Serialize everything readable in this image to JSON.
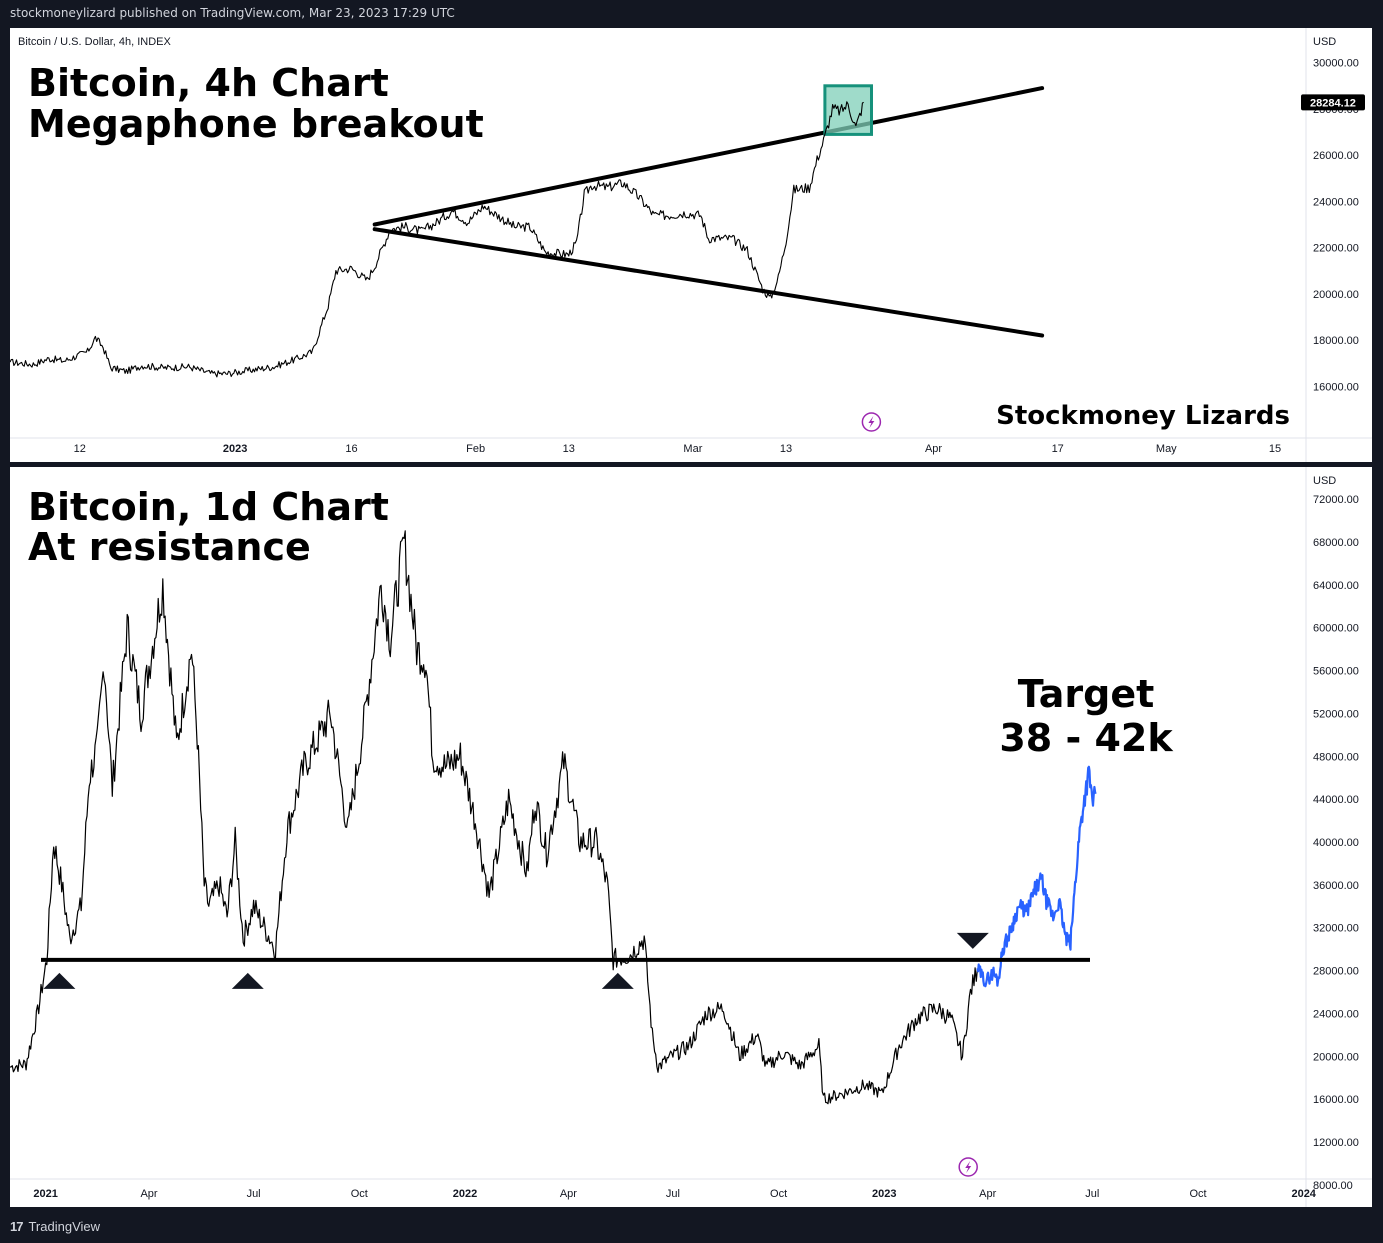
{
  "header": {
    "published_by": "stockmoneylizard published on TradingView.com, Mar 23, 2023 17:29 UTC"
  },
  "footer": {
    "brand": "TradingView",
    "logo_icon": "tradingview-logo-icon"
  },
  "colors": {
    "background": "#131722",
    "panel": "#ffffff",
    "price": "#000000",
    "projection": "#2962ff",
    "box_fill": "#7fcfb8",
    "box_stroke": "#16917b",
    "event_icon": "#9c27b0"
  },
  "chart_data": [
    {
      "type": "line",
      "symbol": "Bitcoin / U.S. Dollar, 4h, INDEX",
      "title_lines": [
        "Bitcoin, 4h Chart",
        "Megaphone breakout"
      ],
      "watermark": "Stockmoney Lizards",
      "currency": "USD",
      "last_price_label": "28284.12",
      "ylim": [
        14200,
        31500
      ],
      "y_ticks": [
        {
          "v": 30000,
          "label": "30000.00"
        },
        {
          "v": 28000,
          "label": "28000.00"
        },
        {
          "v": 26000,
          "label": "26000.00"
        },
        {
          "v": 24000,
          "label": "24000.00"
        },
        {
          "v": 22000,
          "label": "22000.00"
        },
        {
          "v": 20000,
          "label": "20000.00"
        },
        {
          "v": 18000,
          "label": "18000.00"
        },
        {
          "v": 16000,
          "label": "16000.00"
        }
      ],
      "x_range": [
        "2022-12-03",
        "2023-05-19"
      ],
      "x_ticks": [
        {
          "d": "2022-12-12",
          "label": "12",
          "bold": false
        },
        {
          "d": "2023-01-01",
          "label": "2023",
          "bold": true
        },
        {
          "d": "2023-01-16",
          "label": "16",
          "bold": false
        },
        {
          "d": "2023-02-01",
          "label": "Feb",
          "bold": false
        },
        {
          "d": "2023-02-13",
          "label": "13",
          "bold": false
        },
        {
          "d": "2023-03-01",
          "label": "Mar",
          "bold": false
        },
        {
          "d": "2023-03-13",
          "label": "13",
          "bold": false
        },
        {
          "d": "2023-04-01",
          "label": "Apr",
          "bold": false
        },
        {
          "d": "2023-04-17",
          "label": "17",
          "bold": false
        },
        {
          "d": "2023-05-01",
          "label": "May",
          "bold": false
        },
        {
          "d": "2023-05-15",
          "label": "15",
          "bold": false
        }
      ],
      "price": [
        [
          "2022-12-03",
          17050
        ],
        [
          "2022-12-06",
          16950
        ],
        [
          "2022-12-08",
          17200
        ],
        [
          "2022-12-10",
          17100
        ],
        [
          "2022-12-13",
          17500
        ],
        [
          "2022-12-14",
          18100
        ],
        [
          "2022-12-15",
          17700
        ],
        [
          "2022-12-16",
          16800
        ],
        [
          "2022-12-18",
          16650
        ],
        [
          "2022-12-20",
          16900
        ],
        [
          "2022-12-23",
          16800
        ],
        [
          "2022-12-26",
          16850
        ],
        [
          "2022-12-29",
          16550
        ],
        [
          "2022-12-31",
          16550
        ],
        [
          "2023-01-03",
          16700
        ],
        [
          "2023-01-06",
          16850
        ],
        [
          "2023-01-09",
          17200
        ],
        [
          "2023-01-11",
          17500
        ],
        [
          "2023-01-12",
          18500
        ],
        [
          "2023-01-13",
          19500
        ],
        [
          "2023-01-14",
          21000
        ],
        [
          "2023-01-16",
          21100
        ],
        [
          "2023-01-18",
          20600
        ],
        [
          "2023-01-19",
          21200
        ],
        [
          "2023-01-21",
          22800
        ],
        [
          "2023-01-23",
          22900
        ],
        [
          "2023-01-25",
          22700
        ],
        [
          "2023-01-27",
          23100
        ],
        [
          "2023-01-29",
          23600
        ],
        [
          "2023-01-31",
          23100
        ],
        [
          "2023-02-02",
          23800
        ],
        [
          "2023-02-04",
          23350
        ],
        [
          "2023-02-06",
          22900
        ],
        [
          "2023-02-08",
          22900
        ],
        [
          "2023-02-10",
          21800
        ],
        [
          "2023-02-13",
          21700
        ],
        [
          "2023-02-14",
          22200
        ],
        [
          "2023-02-15",
          24300
        ],
        [
          "2023-02-16",
          24700
        ],
        [
          "2023-02-18",
          24600
        ],
        [
          "2023-02-20",
          24800
        ],
        [
          "2023-02-22",
          24200
        ],
        [
          "2023-02-24",
          23400
        ],
        [
          "2023-02-26",
          23400
        ],
        [
          "2023-02-28",
          23500
        ],
        [
          "2023-03-02",
          23400
        ],
        [
          "2023-03-03",
          22400
        ],
        [
          "2023-03-06",
          22400
        ],
        [
          "2023-03-08",
          21900
        ],
        [
          "2023-03-10",
          20200
        ],
        [
          "2023-03-11",
          19800
        ],
        [
          "2023-03-12",
          20700
        ],
        [
          "2023-03-13",
          22300
        ],
        [
          "2023-03-14",
          24500
        ],
        [
          "2023-03-16",
          24600
        ],
        [
          "2023-03-17",
          25800
        ],
        [
          "2023-03-18",
          26800
        ],
        [
          "2023-03-19",
          28000
        ],
        [
          "2023-03-20",
          27900
        ],
        [
          "2023-03-21",
          28200
        ],
        [
          "2023-03-22",
          27200
        ],
        [
          "2023-03-23",
          28284
        ]
      ],
      "trendlines": [
        {
          "name": "upper-trendline",
          "points": [
            [
              "2023-01-19",
              23000
            ],
            [
              "2023-04-15",
              28900
            ]
          ]
        },
        {
          "name": "lower-trendline",
          "points": [
            [
              "2023-01-19",
              22800
            ],
            [
              "2023-04-15",
              18200
            ]
          ]
        }
      ],
      "box": {
        "x": [
          "2023-03-18",
          "2023-03-24"
        ],
        "y": [
          26900,
          29000
        ]
      },
      "event_marker": {
        "d": "2023-03-24",
        "icon": "lightning-icon"
      }
    },
    {
      "type": "line",
      "title_lines": [
        "Bitcoin, 1d Chart",
        "At resistance"
      ],
      "annotation_lines": [
        "Target",
        "38 - 42k"
      ],
      "currency": "USD",
      "ylim": [
        7800,
        75000
      ],
      "y_ticks": [
        {
          "v": 72000,
          "label": "72000.00"
        },
        {
          "v": 68000,
          "label": "68000.00"
        },
        {
          "v": 64000,
          "label": "64000.00"
        },
        {
          "v": 60000,
          "label": "60000.00"
        },
        {
          "v": 56000,
          "label": "56000.00"
        },
        {
          "v": 52000,
          "label": "52000.00"
        },
        {
          "v": 48000,
          "label": "48000.00"
        },
        {
          "v": 44000,
          "label": "44000.00"
        },
        {
          "v": 40000,
          "label": "40000.00"
        },
        {
          "v": 36000,
          "label": "36000.00"
        },
        {
          "v": 32000,
          "label": "32000.00"
        },
        {
          "v": 28000,
          "label": "28000.00"
        },
        {
          "v": 24000,
          "label": "24000.00"
        },
        {
          "v": 20000,
          "label": "20000.00"
        },
        {
          "v": 16000,
          "label": "16000.00"
        },
        {
          "v": 12000,
          "label": "12000.00"
        },
        {
          "v": 8000,
          "label": "8000.00"
        }
      ],
      "x_range": [
        "2020-12-01",
        "2024-01-03"
      ],
      "x_ticks": [
        {
          "d": "2021-01-01",
          "label": "2021",
          "bold": true
        },
        {
          "d": "2021-04-01",
          "label": "Apr",
          "bold": false
        },
        {
          "d": "2021-07-01",
          "label": "Jul",
          "bold": false
        },
        {
          "d": "2021-10-01",
          "label": "Oct",
          "bold": false
        },
        {
          "d": "2022-01-01",
          "label": "2022",
          "bold": true
        },
        {
          "d": "2022-04-01",
          "label": "Apr",
          "bold": false
        },
        {
          "d": "2022-07-01",
          "label": "Jul",
          "bold": false
        },
        {
          "d": "2022-10-01",
          "label": "Oct",
          "bold": false
        },
        {
          "d": "2023-01-01",
          "label": "2023",
          "bold": true
        },
        {
          "d": "2023-04-01",
          "label": "Apr",
          "bold": false
        },
        {
          "d": "2023-07-01",
          "label": "Jul",
          "bold": false
        },
        {
          "d": "2023-10-01",
          "label": "Oct",
          "bold": false
        },
        {
          "d": "2024-01-01",
          "label": "2024",
          "bold": true
        }
      ],
      "price": [
        [
          "2020-12-01",
          19000
        ],
        [
          "2020-12-15",
          19300
        ],
        [
          "2020-12-25",
          24000
        ],
        [
          "2021-01-02",
          29000
        ],
        [
          "2021-01-08",
          40000
        ],
        [
          "2021-01-15",
          36000
        ],
        [
          "2021-01-22",
          31000
        ],
        [
          "2021-02-01",
          34000
        ],
        [
          "2021-02-08",
          46000
        ],
        [
          "2021-02-15",
          49000
        ],
        [
          "2021-02-21",
          57000
        ],
        [
          "2021-02-28",
          45000
        ],
        [
          "2021-03-13",
          60000
        ],
        [
          "2021-03-25",
          52000
        ],
        [
          "2021-04-13",
          64000
        ],
        [
          "2021-04-25",
          49000
        ],
        [
          "2021-05-08",
          58000
        ],
        [
          "2021-05-13",
          50000
        ],
        [
          "2021-05-19",
          36000
        ],
        [
          "2021-05-23",
          34000
        ],
        [
          "2021-06-01",
          36000
        ],
        [
          "2021-06-08",
          33000
        ],
        [
          "2021-06-15",
          40000
        ],
        [
          "2021-06-22",
          31000
        ],
        [
          "2021-07-01",
          34000
        ],
        [
          "2021-07-20",
          30000
        ],
        [
          "2021-07-30",
          41000
        ],
        [
          "2021-08-14",
          47000
        ],
        [
          "2021-09-06",
          52000
        ],
        [
          "2021-09-21",
          41000
        ],
        [
          "2021-10-05",
          51000
        ],
        [
          "2021-10-20",
          64000
        ],
        [
          "2021-10-28",
          59000
        ],
        [
          "2021-11-09",
          68000
        ],
        [
          "2021-11-20",
          58000
        ],
        [
          "2021-11-28",
          57000
        ],
        [
          "2021-12-04",
          48000
        ],
        [
          "2021-12-15",
          47000
        ],
        [
          "2021-12-28",
          48000
        ],
        [
          "2022-01-10",
          42000
        ],
        [
          "2022-01-22",
          35000
        ],
        [
          "2022-02-08",
          44000
        ],
        [
          "2022-02-24",
          37000
        ],
        [
          "2022-03-03",
          44000
        ],
        [
          "2022-03-13",
          39000
        ],
        [
          "2022-03-28",
          47500
        ],
        [
          "2022-04-11",
          40000
        ],
        [
          "2022-04-25",
          40000
        ],
        [
          "2022-05-05",
          36000
        ],
        [
          "2022-05-10",
          29000
        ],
        [
          "2022-05-25",
          29500
        ],
        [
          "2022-06-06",
          31000
        ],
        [
          "2022-06-13",
          22000
        ],
        [
          "2022-06-18",
          19000
        ],
        [
          "2022-06-30",
          20000
        ],
        [
          "2022-07-15",
          21000
        ],
        [
          "2022-07-30",
          24000
        ],
        [
          "2022-08-14",
          24500
        ],
        [
          "2022-08-28",
          20000
        ],
        [
          "2022-09-12",
          22000
        ],
        [
          "2022-09-20",
          19000
        ],
        [
          "2022-10-05",
          20300
        ],
        [
          "2022-10-20",
          19100
        ],
        [
          "2022-11-05",
          21000
        ],
        [
          "2022-11-09",
          16000
        ],
        [
          "2022-11-25",
          16500
        ],
        [
          "2022-12-15",
          17300
        ],
        [
          "2022-12-30",
          16500
        ],
        [
          "2023-01-14",
          21000
        ],
        [
          "2023-01-29",
          23500
        ],
        [
          "2023-02-15",
          24500
        ],
        [
          "2023-02-28",
          23500
        ],
        [
          "2023-03-10",
          20000
        ],
        [
          "2023-03-17",
          26000
        ],
        [
          "2023-03-23",
          28200
        ]
      ],
      "projection": [
        [
          "2023-03-23",
          28200
        ],
        [
          "2023-03-30",
          27000
        ],
        [
          "2023-04-06",
          27800
        ],
        [
          "2023-04-10",
          27000
        ],
        [
          "2023-04-14",
          30000
        ],
        [
          "2023-04-20",
          31500
        ],
        [
          "2023-04-28",
          34000
        ],
        [
          "2023-05-05",
          33500
        ],
        [
          "2023-05-12",
          35500
        ],
        [
          "2023-05-18",
          36500
        ],
        [
          "2023-05-22",
          34500
        ],
        [
          "2023-05-28",
          33000
        ],
        [
          "2023-06-02",
          34500
        ],
        [
          "2023-06-08",
          31000
        ],
        [
          "2023-06-12",
          30500
        ],
        [
          "2023-06-16",
          36000
        ],
        [
          "2023-06-20",
          41000
        ],
        [
          "2023-06-24",
          44000
        ],
        [
          "2023-06-28",
          46500
        ],
        [
          "2023-07-01",
          44000
        ],
        [
          "2023-07-04",
          44500
        ]
      ],
      "resistance": {
        "y": 29000,
        "x": [
          "2020-12-28",
          "2023-06-29"
        ]
      },
      "markers": [
        {
          "name": "bounce-up-marker-1",
          "d": "2021-01-13",
          "dir": "up"
        },
        {
          "name": "bounce-up-marker-2",
          "d": "2021-06-26",
          "dir": "up"
        },
        {
          "name": "bounce-up-marker-3",
          "d": "2022-05-14",
          "dir": "up"
        },
        {
          "name": "test-down-marker",
          "d": "2023-03-19",
          "dir": "down"
        }
      ],
      "event_marker": {
        "d": "2023-03-15",
        "icon": "lightning-icon"
      }
    }
  ]
}
